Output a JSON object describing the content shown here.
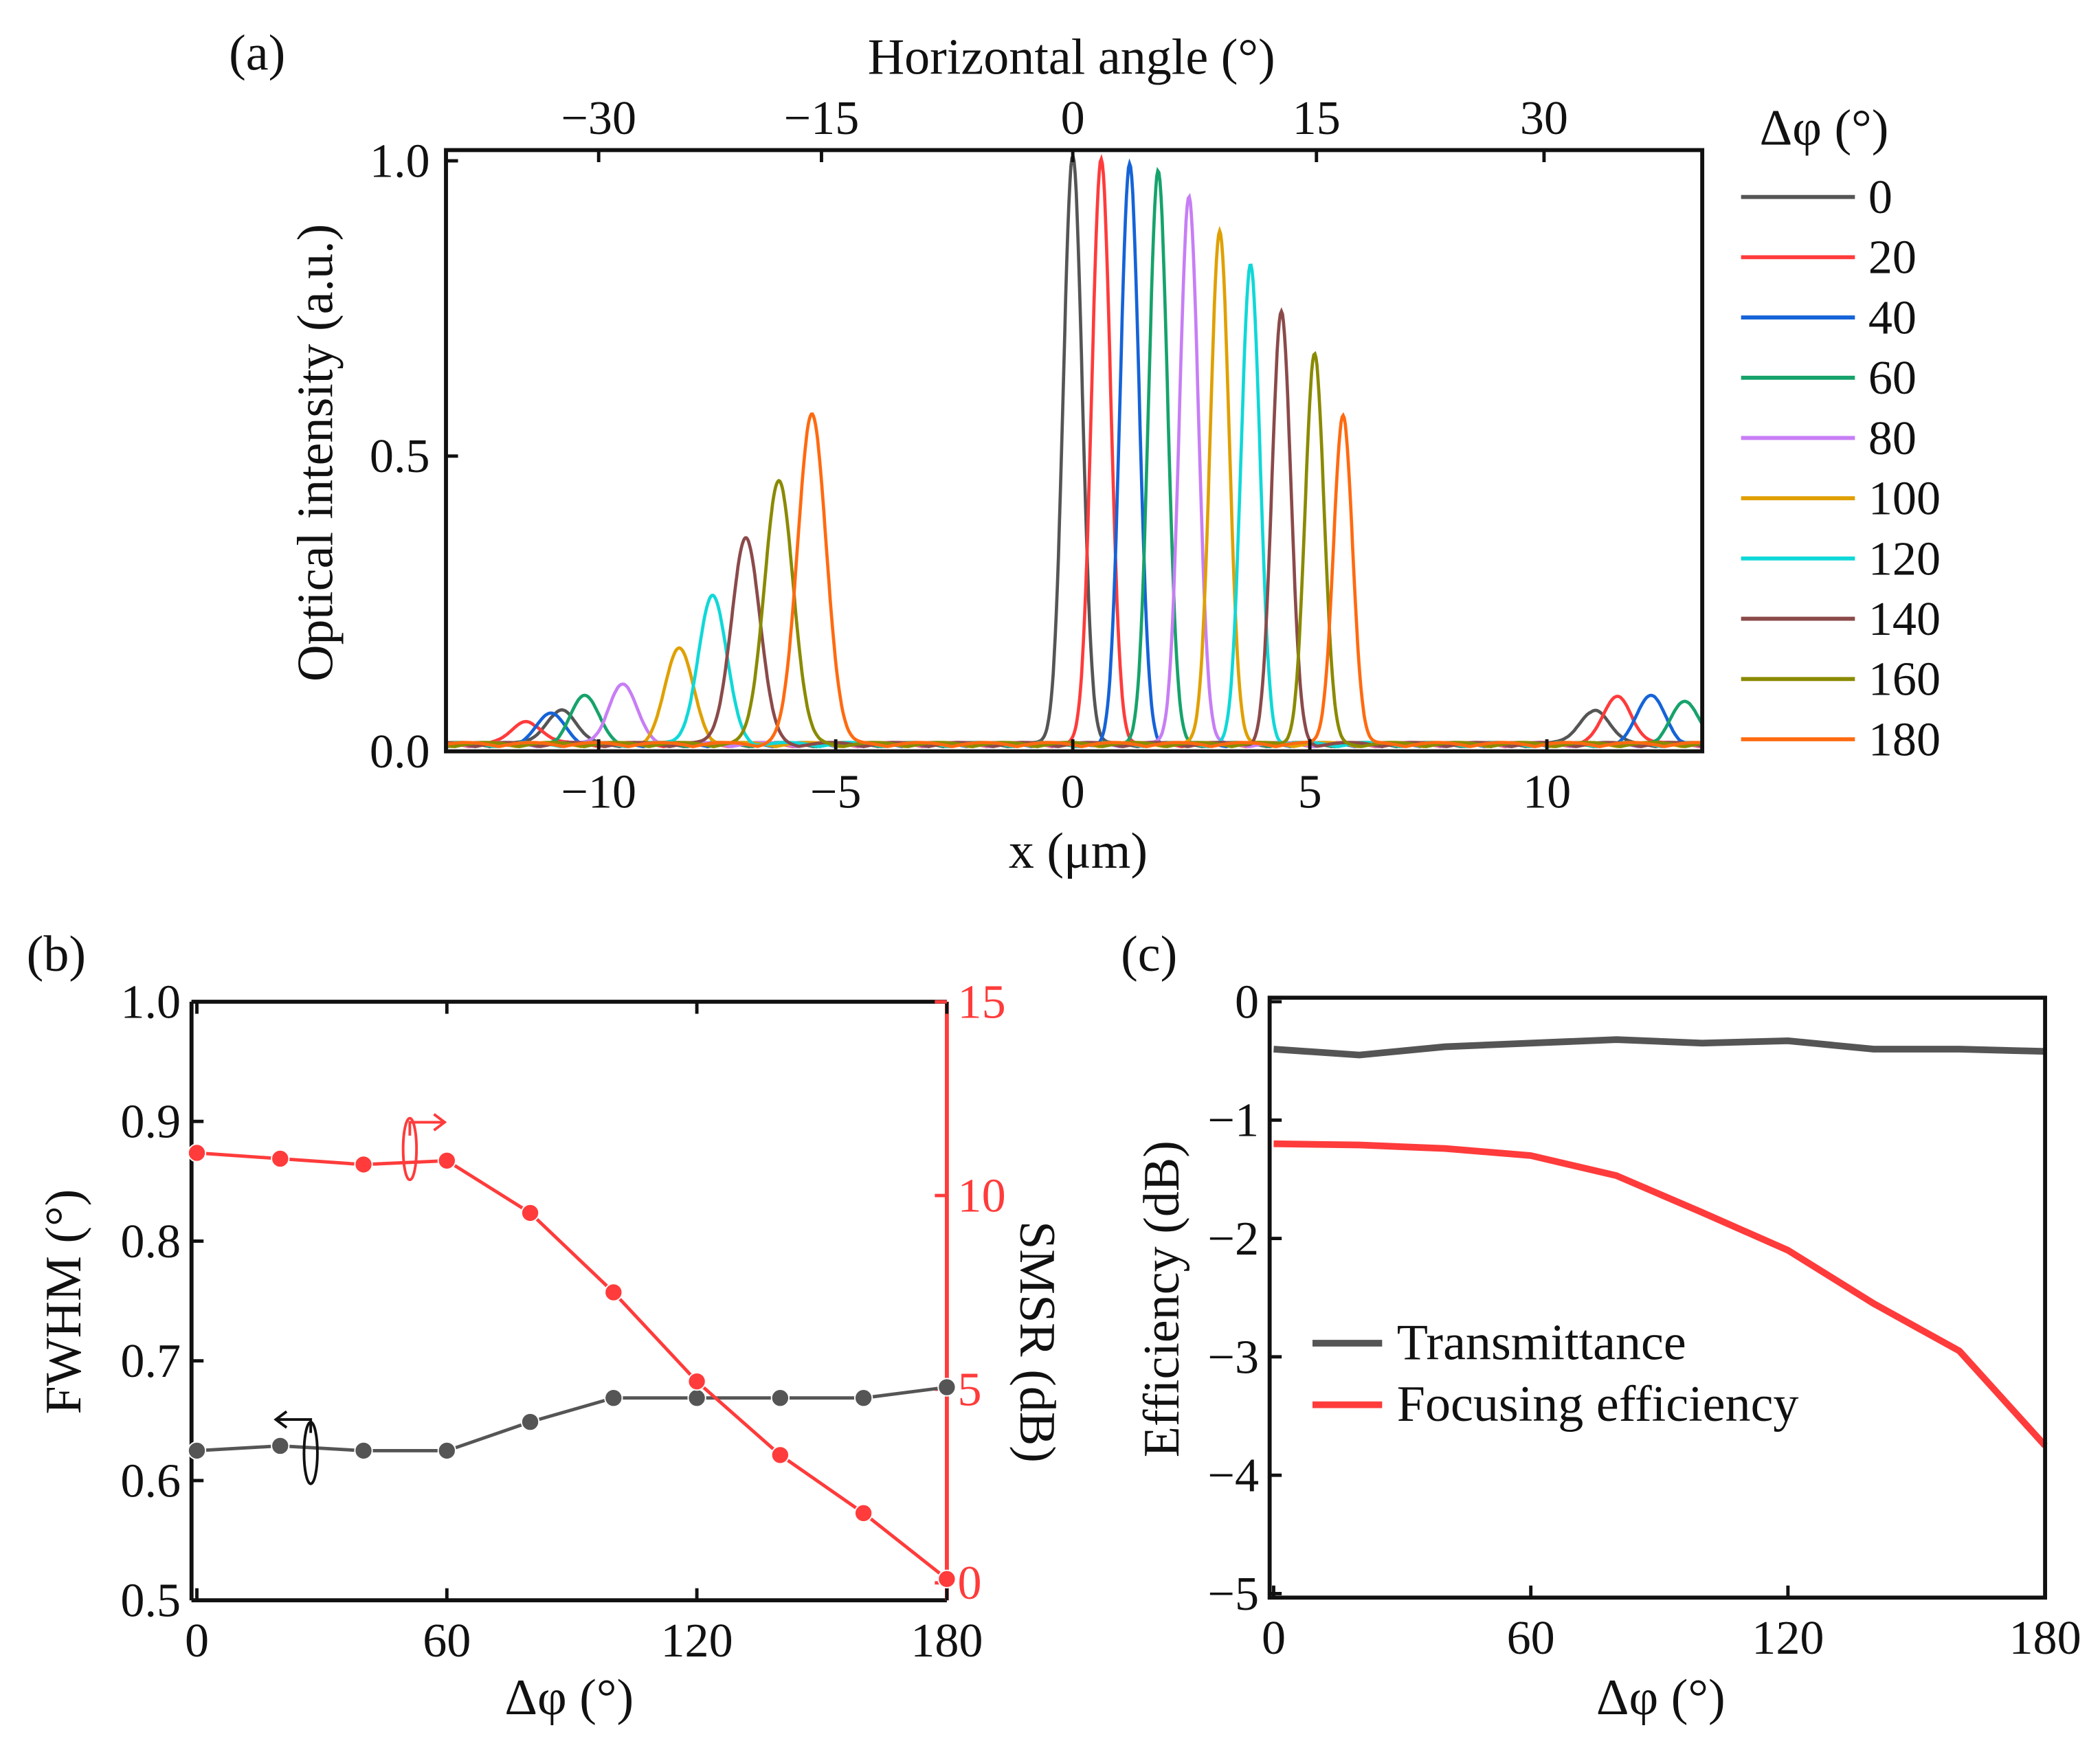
{
  "chart_data": [
    {
      "panel": "(a)",
      "type": "line",
      "xlabel": "x (μm)",
      "ylabel": "Optical intensity (a.u.)",
      "top_xlabel": "Horizontal angle (°)",
      "xlim": [
        -13.2,
        13.3
      ],
      "ylim": [
        0,
        1.0
      ],
      "xticks": [
        -10,
        -5,
        0,
        5,
        10
      ],
      "xtick_labels": [
        "−10",
        "−5",
        "0",
        "5",
        "10"
      ],
      "yticks": [
        0,
        0.5,
        1.0
      ],
      "ytick_labels": [
        "0.0",
        "0.5",
        "1.0"
      ],
      "top_ticks": [
        {
          "label": "−30",
          "x": -10.0
        },
        {
          "label": "−15",
          "x": -5.3
        },
        {
          "label": "0",
          "x": 0
        },
        {
          "label": "15",
          "x": 5.14
        },
        {
          "label": "30",
          "x": 9.94
        }
      ],
      "legend_title": "Δφ (°)",
      "legend_position": "right-outside",
      "series": [
        {
          "name": "0",
          "color": "#555555",
          "main_peak": [
            0.0,
            1.0
          ],
          "side_peaks": [
            [
              -10.8,
              0.06
            ],
            [
              11.0,
              0.06
            ]
          ]
        },
        {
          "name": "20",
          "color": "#ff3b3b",
          "main_peak": [
            0.6,
            0.99
          ],
          "side_peaks": [
            [
              -11.5,
              0.04
            ],
            [
              11.5,
              0.08
            ]
          ]
        },
        {
          "name": "40",
          "color": "#1563d8",
          "main_peak": [
            1.2,
            0.98
          ],
          "side_peaks": [
            [
              -11.0,
              0.05
            ],
            [
              12.2,
              0.08
            ]
          ]
        },
        {
          "name": "60",
          "color": "#16a36b",
          "main_peak": [
            1.8,
            0.97
          ],
          "side_peaks": [
            [
              -10.3,
              0.08
            ],
            [
              12.9,
              0.07
            ]
          ]
        },
        {
          "name": "80",
          "color": "#c77ef5",
          "main_peak": [
            2.45,
            0.93
          ],
          "side_peaks": [
            [
              -9.5,
              0.1
            ]
          ]
        },
        {
          "name": "100",
          "color": "#e0a000",
          "main_peak": [
            3.1,
            0.87
          ],
          "side_peaks": [
            [
              -8.3,
              0.16
            ]
          ]
        },
        {
          "name": "120",
          "color": "#10d8d8",
          "main_peak": [
            3.75,
            0.81
          ],
          "side_peaks": [
            [
              -7.6,
              0.25
            ]
          ]
        },
        {
          "name": "140",
          "color": "#8b4a4a",
          "main_peak": [
            4.4,
            0.73
          ],
          "side_peaks": [
            [
              -6.9,
              0.35
            ]
          ]
        },
        {
          "name": "160",
          "color": "#8a8a00",
          "main_peak": [
            5.1,
            0.66
          ],
          "side_peaks": [
            [
              -6.2,
              0.45
            ]
          ]
        },
        {
          "name": "180",
          "color": "#ff6a10",
          "main_peak": [
            5.7,
            0.56
          ],
          "side_peaks": [
            [
              -5.5,
              0.56
            ]
          ]
        }
      ]
    },
    {
      "panel": "(b)",
      "type": "line",
      "x": [
        0,
        20,
        40,
        60,
        80,
        100,
        120,
        140,
        160,
        180
      ],
      "xlabel": "Δφ (°)",
      "ylabel": "FWHM (°)",
      "y2label": "SMSR (dB)",
      "xlim": [
        0,
        180
      ],
      "ylim": [
        0.5,
        1.0
      ],
      "y2lim": [
        0,
        15
      ],
      "xticks": [
        0,
        60,
        120,
        180
      ],
      "xtick_labels": [
        "0",
        "60",
        "120",
        "180"
      ],
      "yticks": [
        0.5,
        0.6,
        0.7,
        0.8,
        0.9,
        1.0
      ],
      "ytick_labels": [
        "0.5",
        "0.6",
        "0.7",
        "0.8",
        "0.9",
        "1.0"
      ],
      "y2ticks": [
        0,
        5,
        10,
        15
      ],
      "y2tick_labels": [
        "0",
        "5",
        "10",
        "15"
      ],
      "series": [
        {
          "name": "FWHM",
          "axis": "left",
          "color": "#555555",
          "values": [
            0.625,
            0.629,
            0.625,
            0.625,
            0.649,
            0.669,
            0.669,
            0.669,
            0.669,
            0.678
          ]
        },
        {
          "name": "SMSR",
          "axis": "right",
          "color": "#ff3b3b",
          "values": [
            11.1,
            10.95,
            10.8,
            10.9,
            9.55,
            7.5,
            5.2,
            3.3,
            1.8,
            0.1
          ]
        }
      ]
    },
    {
      "panel": "(c)",
      "type": "line",
      "x": [
        0,
        20,
        40,
        60,
        80,
        100,
        120,
        140,
        160,
        180
      ],
      "xlabel": "Δφ (°)",
      "ylabel": "Efficiency (dB)",
      "xlim": [
        0,
        180
      ],
      "ylim": [
        -5,
        0
      ],
      "xticks": [
        0,
        60,
        120,
        180
      ],
      "xtick_labels": [
        "0",
        "60",
        "120",
        "180"
      ],
      "yticks": [
        -5,
        -4,
        -3,
        -2,
        -1,
        0
      ],
      "ytick_labels": [
        "−5",
        "−4",
        "−3",
        "−2",
        "−1",
        "0"
      ],
      "legend_position": "center-left",
      "series": [
        {
          "name": "Transmittance",
          "color": "#555555",
          "values": [
            -0.4,
            -0.45,
            -0.38,
            -0.35,
            -0.32,
            -0.35,
            -0.33,
            -0.4,
            -0.4,
            -0.42
          ]
        },
        {
          "name": "Focusing efficiency",
          "color": "#ff3b3b",
          "values": [
            -1.2,
            -1.21,
            -1.24,
            -1.3,
            -1.47,
            -1.78,
            -2.1,
            -2.55,
            -2.95,
            -3.75
          ]
        }
      ]
    }
  ]
}
